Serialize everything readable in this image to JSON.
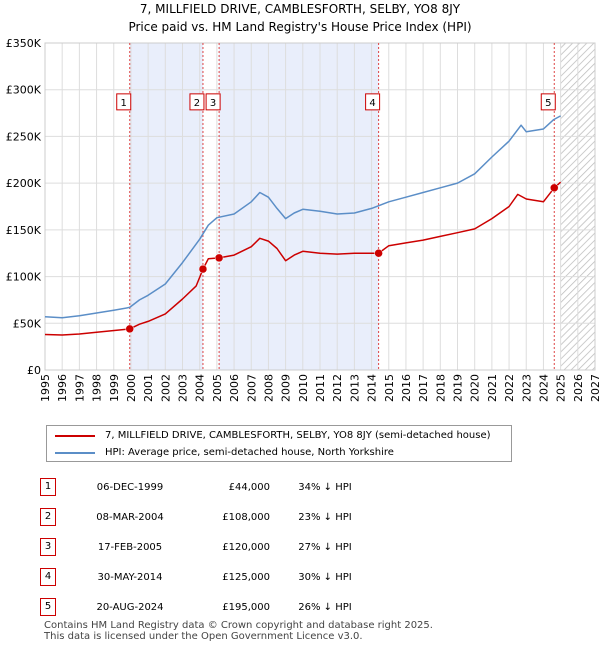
{
  "title_line1": "7, MILLFIELD DRIVE, CAMBLESFORTH, SELBY, YO8 8JY",
  "title_line2": "Price paid vs. HM Land Registry's House Price Index (HPI)",
  "legend": {
    "property": "7, MILLFIELD DRIVE, CAMBLESFORTH, SELBY, YO8 8JY (semi-detached house)",
    "hpi": "HPI: Average price, semi-detached house, North Yorkshire"
  },
  "transactions": [
    {
      "num": "1",
      "date": "06-DEC-1999",
      "price": "£44,000",
      "hpi": "34% ↓ HPI"
    },
    {
      "num": "2",
      "date": "08-MAR-2004",
      "price": "£108,000",
      "hpi": "23% ↓ HPI"
    },
    {
      "num": "3",
      "date": "17-FEB-2005",
      "price": "£120,000",
      "hpi": "27% ↓ HPI"
    },
    {
      "num": "4",
      "date": "30-MAY-2014",
      "price": "£125,000",
      "hpi": "30% ↓ HPI"
    },
    {
      "num": "5",
      "date": "20-AUG-2024",
      "price": "£195,000",
      "hpi": "26% ↓ HPI"
    }
  ],
  "footer": {
    "line1": "Contains HM Land Registry data © Crown copyright and database right 2025.",
    "line2": "This data is licensed under the Open Government Licence v3.0."
  },
  "colors": {
    "property": "#cc0000",
    "hpi": "#5b8ec7",
    "shade": "#e9eefb",
    "vline": "#dd4444"
  },
  "chart_data": {
    "type": "line",
    "title": "Price paid vs. HM Land Registry's House Price Index (HPI)",
    "xlim": [
      1995,
      2027
    ],
    "ylim": [
      0,
      350000
    ],
    "x_ticks": [
      1995,
      1996,
      1997,
      1998,
      1999,
      2000,
      2001,
      2002,
      2003,
      2004,
      2005,
      2006,
      2007,
      2008,
      2009,
      2010,
      2011,
      2012,
      2013,
      2014,
      2015,
      2016,
      2017,
      2018,
      2019,
      2020,
      2021,
      2022,
      2023,
      2024,
      2025,
      2026,
      2027
    ],
    "y_ticks": [
      0,
      50000,
      100000,
      150000,
      200000,
      250000,
      300000,
      350000
    ],
    "y_tick_labels": [
      "£0",
      "£50K",
      "£100K",
      "£150K",
      "£200K",
      "£250K",
      "£300K",
      "£350K"
    ],
    "shaded_ranges": [
      [
        1999.93,
        2004.19
      ],
      [
        2005.13,
        2014.41
      ]
    ],
    "future_hatch_from": 2025.0,
    "series": [
      {
        "name": "HPI: Average price, semi-detached house, North Yorkshire",
        "points": [
          [
            1995,
            57000
          ],
          [
            1996,
            56000
          ],
          [
            1997,
            58000
          ],
          [
            1998,
            61000
          ],
          [
            1999,
            64000
          ],
          [
            1999.93,
            67000
          ],
          [
            2000.5,
            75000
          ],
          [
            2001,
            80000
          ],
          [
            2002,
            92000
          ],
          [
            2003,
            115000
          ],
          [
            2004,
            140000
          ],
          [
            2004.5,
            155000
          ],
          [
            2005,
            163000
          ],
          [
            2006,
            167000
          ],
          [
            2007,
            180000
          ],
          [
            2007.5,
            190000
          ],
          [
            2008,
            185000
          ],
          [
            2008.5,
            173000
          ],
          [
            2009,
            162000
          ],
          [
            2009.5,
            168000
          ],
          [
            2010,
            172000
          ],
          [
            2011,
            170000
          ],
          [
            2012,
            167000
          ],
          [
            2013,
            168000
          ],
          [
            2014,
            173000
          ],
          [
            2015,
            180000
          ],
          [
            2016,
            185000
          ],
          [
            2017,
            190000
          ],
          [
            2018,
            195000
          ],
          [
            2019,
            200000
          ],
          [
            2020,
            210000
          ],
          [
            2021,
            228000
          ],
          [
            2022,
            245000
          ],
          [
            2022.7,
            262000
          ],
          [
            2023,
            255000
          ],
          [
            2024,
            258000
          ],
          [
            2024.6,
            268000
          ],
          [
            2025,
            272000
          ]
        ]
      },
      {
        "name": "7, MILLFIELD DRIVE, CAMBLESFORTH, SELBY, YO8 8JY (semi-detached house)",
        "points": [
          [
            1995,
            38000
          ],
          [
            1996,
            37500
          ],
          [
            1997,
            38500
          ],
          [
            1998,
            40500
          ],
          [
            1999.93,
            44000
          ],
          [
            2000.5,
            49000
          ],
          [
            2001,
            52000
          ],
          [
            2002,
            60000
          ],
          [
            2003,
            76000
          ],
          [
            2003.8,
            90000
          ],
          [
            2004.19,
            108000
          ],
          [
            2004.5,
            119000
          ],
          [
            2005.13,
            120000
          ],
          [
            2006,
            123000
          ],
          [
            2007,
            132000
          ],
          [
            2007.5,
            141000
          ],
          [
            2008,
            138000
          ],
          [
            2008.5,
            130000
          ],
          [
            2009,
            117000
          ],
          [
            2009.5,
            123000
          ],
          [
            2010,
            127000
          ],
          [
            2011,
            125000
          ],
          [
            2012,
            124000
          ],
          [
            2013,
            125000
          ],
          [
            2014.41,
            125000
          ],
          [
            2015,
            133000
          ],
          [
            2016,
            136000
          ],
          [
            2017,
            139000
          ],
          [
            2018,
            143000
          ],
          [
            2019,
            147000
          ],
          [
            2020,
            151000
          ],
          [
            2021,
            162000
          ],
          [
            2022,
            175000
          ],
          [
            2022.5,
            188000
          ],
          [
            2023,
            183000
          ],
          [
            2024,
            180000
          ],
          [
            2024.63,
            195000
          ],
          [
            2025,
            201000
          ]
        ]
      }
    ],
    "sales": [
      {
        "num": "1",
        "x": 1999.93,
        "y": 44000
      },
      {
        "num": "2",
        "x": 2004.19,
        "y": 108000
      },
      {
        "num": "3",
        "x": 2005.13,
        "y": 120000
      },
      {
        "num": "4",
        "x": 2014.41,
        "y": 125000
      },
      {
        "num": "5",
        "x": 2024.63,
        "y": 195000
      }
    ],
    "marker_label_y": 287000
  }
}
